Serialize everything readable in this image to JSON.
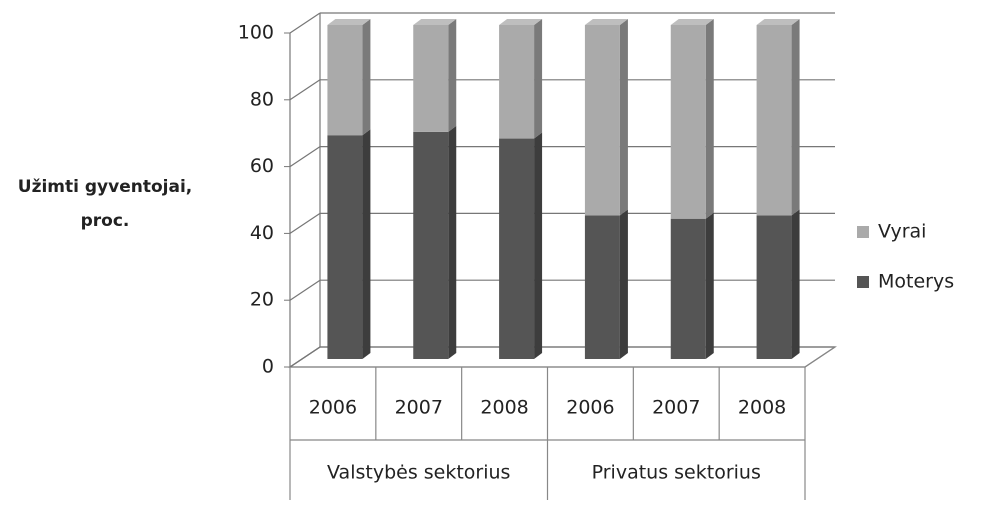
{
  "chart_data": {
    "type": "bar3d_stacked",
    "ylabel": "Užimti gyventojai, proc.",
    "categories": [
      "2006",
      "2007",
      "2008",
      "2006",
      "2007",
      "2008"
    ],
    "groups": [
      "Valstybės sektorius",
      "Privatus sektorius"
    ],
    "series": [
      {
        "name": "Moterys",
        "color": "#555555",
        "values": [
          67,
          68,
          66,
          43,
          42,
          43
        ]
      },
      {
        "name": "Vyrai",
        "color": "#aaaaaa",
        "values": [
          33,
          32,
          34,
          57,
          58,
          57
        ]
      }
    ],
    "ylim": [
      0,
      100
    ],
    "yticks": [
      0,
      20,
      40,
      60,
      80,
      100
    ],
    "grid": true
  }
}
